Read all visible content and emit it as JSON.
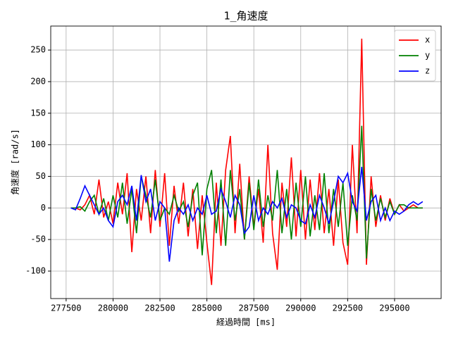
{
  "chart_data": {
    "type": "line",
    "title": "1_角速度",
    "xlabel": "経過時間 [ms]",
    "ylabel": "角速度 [rad/s]",
    "x": [
      277750,
      278000,
      278250,
      278500,
      278750,
      279000,
      279250,
      279500,
      279750,
      280000,
      280250,
      280500,
      280750,
      281000,
      281250,
      281500,
      281750,
      282000,
      282250,
      282500,
      282750,
      283000,
      283250,
      283500,
      283750,
      284000,
      284250,
      284500,
      284750,
      285000,
      285250,
      285500,
      285750,
      286000,
      286250,
      286500,
      286750,
      287000,
      287250,
      287500,
      287750,
      288000,
      288250,
      288500,
      288750,
      289000,
      289250,
      289500,
      289750,
      290000,
      290250,
      290500,
      290750,
      291000,
      291250,
      291500,
      291750,
      292000,
      292250,
      292500,
      292750,
      293000,
      293250,
      293500,
      293750,
      294000,
      294250,
      294500,
      294750,
      295000,
      295250,
      295500,
      295750,
      296000,
      296250,
      296500
    ],
    "series": [
      {
        "name": "x",
        "color": "#ff0000",
        "values": [
          0,
          0,
          -3,
          5,
          20,
          -10,
          45,
          -15,
          10,
          -25,
          40,
          -10,
          55,
          -70,
          30,
          -20,
          50,
          -40,
          60,
          -30,
          55,
          -60,
          35,
          -25,
          40,
          -45,
          30,
          -65,
          20,
          -55,
          -122,
          40,
          -60,
          60,
          114,
          -40,
          70,
          -50,
          50,
          -30,
          30,
          -55,
          100,
          -40,
          -98,
          40,
          -30,
          80,
          -45,
          60,
          -50,
          45,
          -35,
          55,
          -40,
          30,
          -60,
          45,
          -55,
          -90,
          100,
          -40,
          268,
          -90,
          50,
          -30,
          20,
          -20,
          15,
          -10,
          5,
          -5,
          0,
          5,
          0,
          0
        ]
      },
      {
        "name": "y",
        "color": "#008000",
        "values": [
          0,
          0,
          2,
          -5,
          10,
          20,
          -10,
          15,
          -20,
          20,
          -15,
          40,
          -25,
          30,
          -40,
          50,
          20,
          -15,
          45,
          -20,
          0,
          -10,
          20,
          -5,
          10,
          -30,
          20,
          40,
          -75,
          30,
          60,
          -40,
          45,
          -60,
          60,
          -20,
          30,
          -50,
          40,
          -35,
          45,
          -30,
          20,
          -20,
          60,
          -40,
          30,
          -50,
          40,
          -30,
          50,
          -45,
          20,
          -35,
          55,
          -40,
          30,
          -30,
          40,
          -60,
          20,
          -20,
          130,
          -80,
          30,
          -20,
          15,
          -15,
          10,
          -10,
          5,
          5,
          0,
          0,
          0,
          0
        ]
      },
      {
        "name": "z",
        "color": "#0000ff",
        "values": [
          0,
          -3,
          15,
          35,
          20,
          5,
          -10,
          0,
          -20,
          -30,
          10,
          20,
          5,
          35,
          -20,
          52,
          10,
          30,
          -20,
          10,
          0,
          -85,
          -20,
          0,
          -10,
          5,
          -20,
          0,
          -10,
          20,
          -10,
          -5,
          30,
          10,
          -15,
          20,
          5,
          -40,
          -30,
          20,
          -20,
          0,
          -10,
          10,
          0,
          15,
          -15,
          5,
          0,
          -20,
          -25,
          5,
          -15,
          20,
          0,
          -25,
          10,
          50,
          40,
          55,
          10,
          -5,
          65,
          -20,
          10,
          20,
          -20,
          0,
          -20,
          -5,
          -10,
          -5,
          5,
          10,
          5,
          10
        ]
      }
    ],
    "xlim": [
      276680,
      297480
    ],
    "ylim": [
      -143.5,
      288
    ],
    "xticks": [
      277500,
      280000,
      282500,
      285000,
      287500,
      290000,
      292500,
      295000
    ],
    "yticks": [
      -100,
      -50,
      0,
      50,
      100,
      150,
      200,
      250
    ],
    "grid": true,
    "legend": "upper right"
  }
}
